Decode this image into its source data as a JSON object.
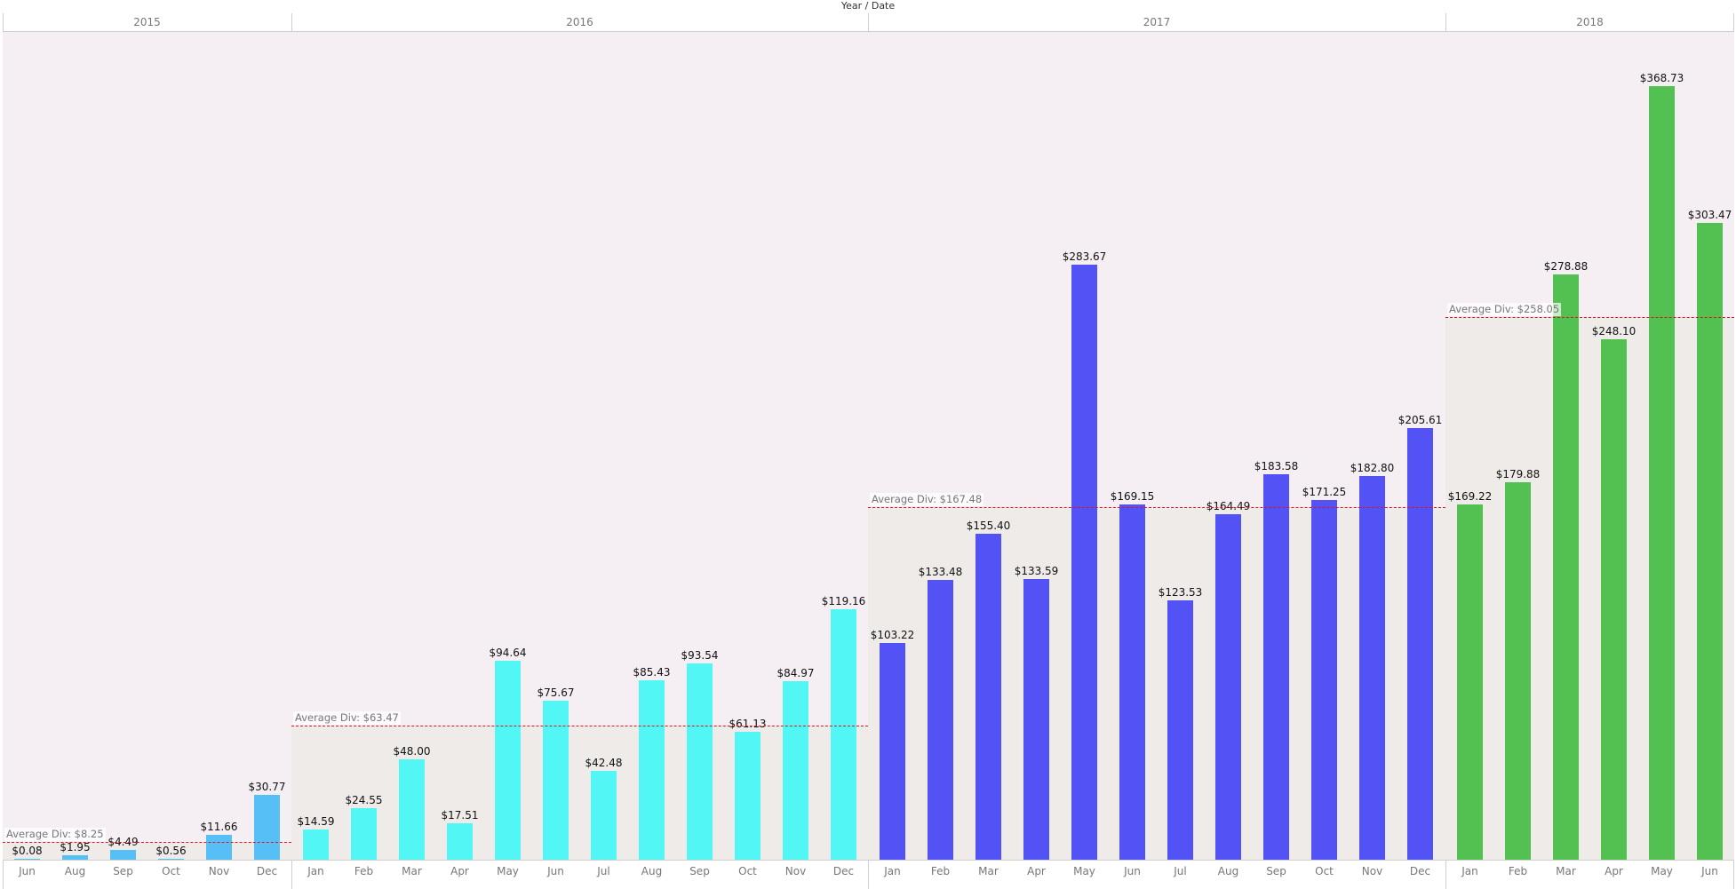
{
  "chart_data": {
    "type": "bar",
    "title": "Year / Date",
    "xlabel": "Year / Date",
    "ylabel": "",
    "grid": false,
    "legend": "none",
    "value_format": "currency",
    "years": [
      {
        "year": "2015",
        "color": "#56bff5",
        "average_label": "Average Div: $8.25",
        "average": 8.25,
        "months": [
          "Jun",
          "Aug",
          "Sep",
          "Oct",
          "Nov",
          "Dec"
        ],
        "values": [
          0.08,
          1.95,
          4.49,
          0.56,
          11.66,
          30.77
        ],
        "labels": [
          "$0.08",
          "$1.95",
          "$4.49",
          "$0.56",
          "$11.66",
          "$30.77"
        ]
      },
      {
        "year": "2016",
        "color": "#52f7f5",
        "average_label": "Average Div: $63.47",
        "average": 63.47,
        "months": [
          "Jan",
          "Feb",
          "Mar",
          "Apr",
          "May",
          "Jun",
          "Jul",
          "Aug",
          "Sep",
          "Oct",
          "Nov",
          "Dec"
        ],
        "values": [
          14.59,
          24.55,
          48.0,
          17.51,
          94.64,
          75.67,
          42.48,
          85.43,
          93.54,
          61.13,
          84.97,
          119.16
        ],
        "labels": [
          "$14.59",
          "$24.55",
          "$48.00",
          "$17.51",
          "$94.64",
          "$75.67",
          "$42.48",
          "$85.43",
          "$93.54",
          "$61.13",
          "$84.97",
          "$119.16"
        ]
      },
      {
        "year": "2017",
        "color": "#5252f5",
        "average_label": "Average Div: $167.48",
        "average": 167.48,
        "months": [
          "Jan",
          "Feb",
          "Mar",
          "Apr",
          "May",
          "Jun",
          "Jul",
          "Aug",
          "Sep",
          "Oct",
          "Nov",
          "Dec"
        ],
        "values": [
          103.22,
          133.48,
          155.4,
          133.59,
          283.67,
          169.15,
          123.53,
          164.49,
          183.58,
          171.25,
          182.8,
          205.61
        ],
        "labels": [
          "$103.22",
          "$133.48",
          "$155.40",
          "$133.59",
          "$283.67",
          "$169.15",
          "$123.53",
          "$164.49",
          "$183.58",
          "$171.25",
          "$182.80",
          "$205.61"
        ]
      },
      {
        "year": "2018",
        "color": "#52c152",
        "average_label": "Average Div: $258.05",
        "average": 258.05,
        "months": [
          "Jan",
          "Feb",
          "Mar",
          "Apr",
          "May",
          "Jun"
        ],
        "values": [
          169.22,
          179.88,
          278.88,
          248.1,
          368.73,
          303.47
        ],
        "labels": [
          "$169.22",
          "$179.88",
          "$278.88",
          "$248.10",
          "$368.73",
          "$303.47"
        ]
      }
    ],
    "average_line_color": "#e0141e"
  }
}
